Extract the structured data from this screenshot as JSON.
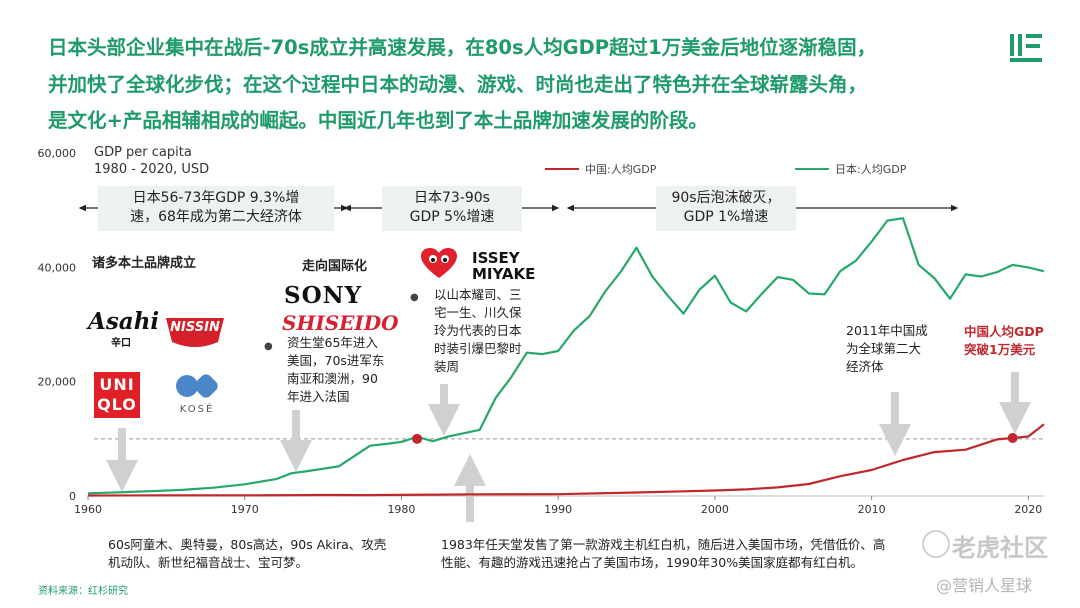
{
  "headline": {
    "line1": "日本头部企业集中在战后-70s成立并高速发展，在80s人均GDP超过1万美金后地位逐渐稳固，",
    "line2": "并加快了全球化步伐；在这个过程中日本的动漫、游戏、时尚也走出了特色并在全球崭露头角，",
    "line3": "是文化+产品相辅相成的崛起。中国近几年也到了本土品牌加速发展的阶段。"
  },
  "chart_data": {
    "type": "line",
    "title": "GDP per capita",
    "subtitle": "1980 - 2020, USD",
    "xlabel": "",
    "ylabel": "",
    "xlim": [
      1960,
      2021
    ],
    "ylim": [
      0,
      60000
    ],
    "x_ticks": [
      "1960",
      "1970",
      "1980",
      "1990",
      "2000",
      "2010",
      "2020"
    ],
    "y_ticks": [
      "0",
      "20,000",
      "40,000",
      "60,000"
    ],
    "reference_line": 10000,
    "legend_position": "top-right",
    "series": [
      {
        "name": "中国:人均GDP",
        "color": "#c0282d",
        "x": [
          1960,
          1965,
          1970,
          1975,
          1978,
          1980,
          1985,
          1990,
          1995,
          1998,
          2000,
          2002,
          2004,
          2006,
          2008,
          2010,
          2012,
          2014,
          2016,
          2018,
          2019,
          2020,
          2021
        ],
        "y": [
          90,
          100,
          113,
          178,
          156,
          195,
          294,
          318,
          610,
          829,
          959,
          1149,
          1509,
          2099,
          3468,
          4550,
          6300,
          7684,
          8094,
          9905,
          10144,
          10409,
          12556
        ]
      },
      {
        "name": "日本:人均GDP",
        "color": "#27a86b",
        "x": [
          1960,
          1962,
          1964,
          1966,
          1968,
          1970,
          1972,
          1973,
          1974,
          1976,
          1978,
          1979,
          1980,
          1981,
          1982,
          1983,
          1984,
          1985,
          1986,
          1987,
          1988,
          1989,
          1990,
          1991,
          1992,
          1993,
          1994,
          1995,
          1996,
          1997,
          1998,
          1999,
          2000,
          2001,
          2002,
          2003,
          2004,
          2005,
          2006,
          2007,
          2008,
          2009,
          2010,
          2011,
          2012,
          2013,
          2014,
          2015,
          2016,
          2017,
          2018,
          2019,
          2020,
          2021
        ],
        "y": [
          475,
          640,
          840,
          1060,
          1450,
          2040,
          2950,
          3990,
          4350,
          5200,
          8800,
          9100,
          9465,
          10360,
          9580,
          10420,
          10980,
          11580,
          17110,
          20750,
          25060,
          24820,
          25360,
          28930,
          31460,
          35770,
          39270,
          43440,
          38440,
          35020,
          31900,
          36030,
          38530,
          33850,
          32290,
          35390,
          38300,
          37810,
          35430,
          35280,
          39340,
          41160,
          44510,
          48170,
          48600,
          40450,
          38110,
          34520,
          38760,
          38390,
          39160,
          40420,
          39990,
          39310
        ]
      }
    ]
  },
  "legend": {
    "china": "中国:人均GDP",
    "japan": "日本:人均GDP"
  },
  "eras": [
    {
      "text1": "日本56-73年GDP 9.3%增",
      "text2": "速，68年成为第二大经济体"
    },
    {
      "text1": "日本73-90s",
      "text2": "GDP 5%增速"
    },
    {
      "text1": "90s后泡沫破灭，",
      "text2": "GDP 1%增速"
    }
  ],
  "labels": {
    "local_brands": "诸多本土品牌成立",
    "internationalization": "走向国际化",
    "shiseido_note": [
      "资生堂65年进入",
      "美国，70s进军东",
      "南亚和澳洲，90",
      "年进入法国"
    ],
    "fashion_note": [
      "以山本耀司、三",
      "宅一生、川久保",
      "玲为代表的日本",
      "时装引爆巴黎时",
      "装周"
    ],
    "china_second": [
      "2011年中国成",
      "为全球第二大",
      "经济体"
    ],
    "china_gdp": [
      "中国人均GDP",
      "突破1万美元"
    ],
    "anime_note": [
      "60s阿童木、奥特曼，80s高达，90s Akira、攻壳",
      "机动队、新世纪福音战士、宝可梦。"
    ],
    "nintendo_note": [
      "1983年任天堂发售了第一款游戏主机红白机，随后进入美国市场，凭借低价、高",
      "性能、有趣的游戏迅速抢占了美国市场，1990年30%美国家庭都有红白机。"
    ]
  },
  "brands": {
    "asahi": "Asahi",
    "asahi_sub": "辛口",
    "nissin": "NISSIN",
    "uniqlo_1": "UNI",
    "uniqlo_2": "QLO",
    "kose": "KOSÉ",
    "sony": "SONY",
    "shiseido": "SHISEIDO",
    "issey_1": "ISSEY",
    "issey_2": "MIYAKE"
  },
  "source": "资料来源：红杉研究",
  "watermark": {
    "main": "老虎社区",
    "sub": "@营销人星球"
  },
  "colors": {
    "accent": "#1f9a6a",
    "china": "#c0282d",
    "japan": "#27a86b"
  }
}
